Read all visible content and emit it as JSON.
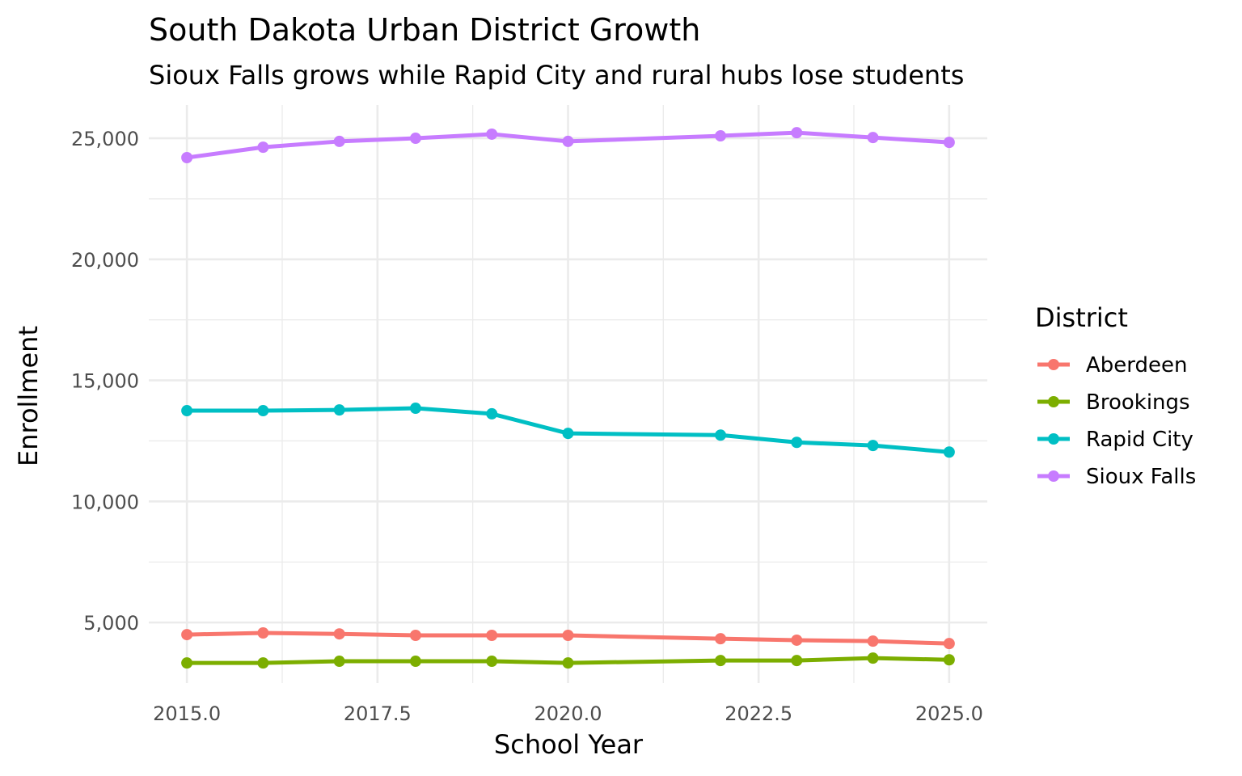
{
  "chart_data": {
    "type": "line",
    "title": "South Dakota Urban District Growth",
    "subtitle": "Sioux Falls grows while Rapid City and rural hubs lose students",
    "x_label": "School Year",
    "y_label": "Enrollment",
    "legend_title": "District",
    "legend_position": "right",
    "grid": true,
    "x": [
      2015,
      2016,
      2017,
      2018,
      2019,
      2020,
      2022,
      2023,
      2024,
      2025
    ],
    "series": [
      {
        "name": "Aberdeen",
        "color": "#F8766D",
        "values": [
          4500,
          4570,
          4530,
          4470,
          4470,
          4470,
          4330,
          4270,
          4230,
          4130
        ]
      },
      {
        "name": "Brookings",
        "color": "#7CAE00",
        "values": [
          3330,
          3330,
          3400,
          3400,
          3400,
          3330,
          3430,
          3430,
          3530,
          3460
        ]
      },
      {
        "name": "Rapid City",
        "color": "#00BFC4",
        "values": [
          13750,
          13750,
          13780,
          13850,
          13620,
          12810,
          12740,
          12440,
          12310,
          12040
        ]
      },
      {
        "name": "Sioux Falls",
        "color": "#C77CFF",
        "values": [
          24200,
          24630,
          24870,
          25000,
          25170,
          24870,
          25100,
          25230,
          25030,
          24830
        ]
      }
    ],
    "xlim": [
      2014.5,
      2025.5
    ],
    "xticks": [
      {
        "value": 2015,
        "label": "2015.0"
      },
      {
        "value": 2017.5,
        "label": "2017.5"
      },
      {
        "value": 2020,
        "label": "2020.0"
      },
      {
        "value": 2022.5,
        "label": "2022.5"
      },
      {
        "value": 2025,
        "label": "2025.0"
      }
    ],
    "ylim": [
      2500,
      26370
    ],
    "yticks": [
      {
        "value": 5000,
        "label": "5,000"
      },
      {
        "value": 10000,
        "label": "10,000"
      },
      {
        "value": 15000,
        "label": "15,000"
      },
      {
        "value": 20000,
        "label": "20,000"
      },
      {
        "value": 25000,
        "label": "25,000"
      }
    ]
  }
}
